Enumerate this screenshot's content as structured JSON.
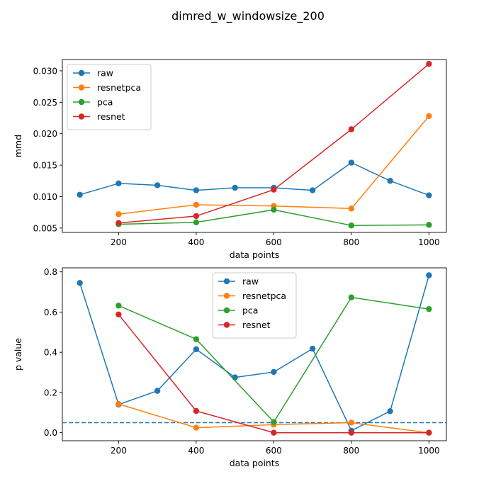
{
  "figure": {
    "suptitle": "dimred_w_windowsize_200"
  },
  "colors": {
    "raw": "#1f77b4",
    "resnetpca": "#ff7f0e",
    "pca": "#2ca02c",
    "resnet": "#d62728"
  },
  "chart_data": [
    {
      "type": "line",
      "title": "",
      "xlabel": "data points",
      "ylabel": "mmd",
      "xlim": [
        55,
        1045
      ],
      "ylim": [
        0.0043,
        0.0318
      ],
      "xticks": [
        200,
        400,
        600,
        800,
        1000
      ],
      "yticks": [
        0.005,
        0.01,
        0.015,
        0.02,
        0.025,
        0.03
      ],
      "ytick_labels": [
        "0.005",
        "0.010",
        "0.015",
        "0.020",
        "0.025",
        "0.030"
      ],
      "grid": false,
      "legend_position": "upper-left",
      "series": [
        {
          "name": "raw",
          "color": "#1f77b4",
          "x": [
            100,
            200,
            300,
            400,
            500,
            600,
            700,
            800,
            900,
            1000
          ],
          "y": [
            0.0103,
            0.0121,
            0.0118,
            0.011,
            0.0114,
            0.0114,
            0.011,
            0.0154,
            0.0125,
            0.0102
          ]
        },
        {
          "name": "resnetpca",
          "color": "#ff7f0e",
          "x": [
            200,
            400,
            600,
            800,
            1000
          ],
          "y": [
            0.0072,
            0.0087,
            0.0085,
            0.0081,
            0.0228
          ]
        },
        {
          "name": "pca",
          "color": "#2ca02c",
          "x": [
            200,
            400,
            600,
            800,
            1000
          ],
          "y": [
            0.0056,
            0.0059,
            0.0079,
            0.0054,
            0.0055
          ]
        },
        {
          "name": "resnet",
          "color": "#d62728",
          "x": [
            200,
            400,
            600,
            800,
            1000
          ],
          "y": [
            0.0058,
            0.0069,
            0.0111,
            0.0207,
            0.0311
          ]
        }
      ]
    },
    {
      "type": "line",
      "title": "",
      "xlabel": "data points",
      "ylabel": "p value",
      "xlim": [
        55,
        1045
      ],
      "ylim": [
        -0.04,
        0.82
      ],
      "xticks": [
        200,
        400,
        600,
        800,
        1000
      ],
      "yticks": [
        0.0,
        0.2,
        0.4,
        0.6,
        0.8
      ],
      "ytick_labels": [
        "0.0",
        "0.2",
        "0.4",
        "0.6",
        "0.8"
      ],
      "grid": false,
      "legend_position": "upper-center",
      "reference_line": {
        "y": 0.05,
        "style": "dashed",
        "color": "#1f77b4"
      },
      "series": [
        {
          "name": "raw",
          "color": "#1f77b4",
          "x": [
            100,
            200,
            300,
            400,
            500,
            600,
            700,
            800,
            900,
            1000
          ],
          "y": [
            0.745,
            0.14,
            0.208,
            0.415,
            0.275,
            0.302,
            0.418,
            0.01,
            0.107,
            0.783
          ]
        },
        {
          "name": "resnetpca",
          "color": "#ff7f0e",
          "x": [
            200,
            400,
            600,
            800,
            1000
          ],
          "y": [
            0.143,
            0.025,
            0.04,
            0.05,
            0.0
          ]
        },
        {
          "name": "pca",
          "color": "#2ca02c",
          "x": [
            200,
            400,
            600,
            800,
            1000
          ],
          "y": [
            0.632,
            0.465,
            0.053,
            0.673,
            0.615
          ]
        },
        {
          "name": "resnet",
          "color": "#d62728",
          "x": [
            200,
            400,
            600,
            800,
            1000
          ],
          "y": [
            0.588,
            0.108,
            0.0,
            0.0,
            0.0
          ]
        }
      ]
    }
  ]
}
